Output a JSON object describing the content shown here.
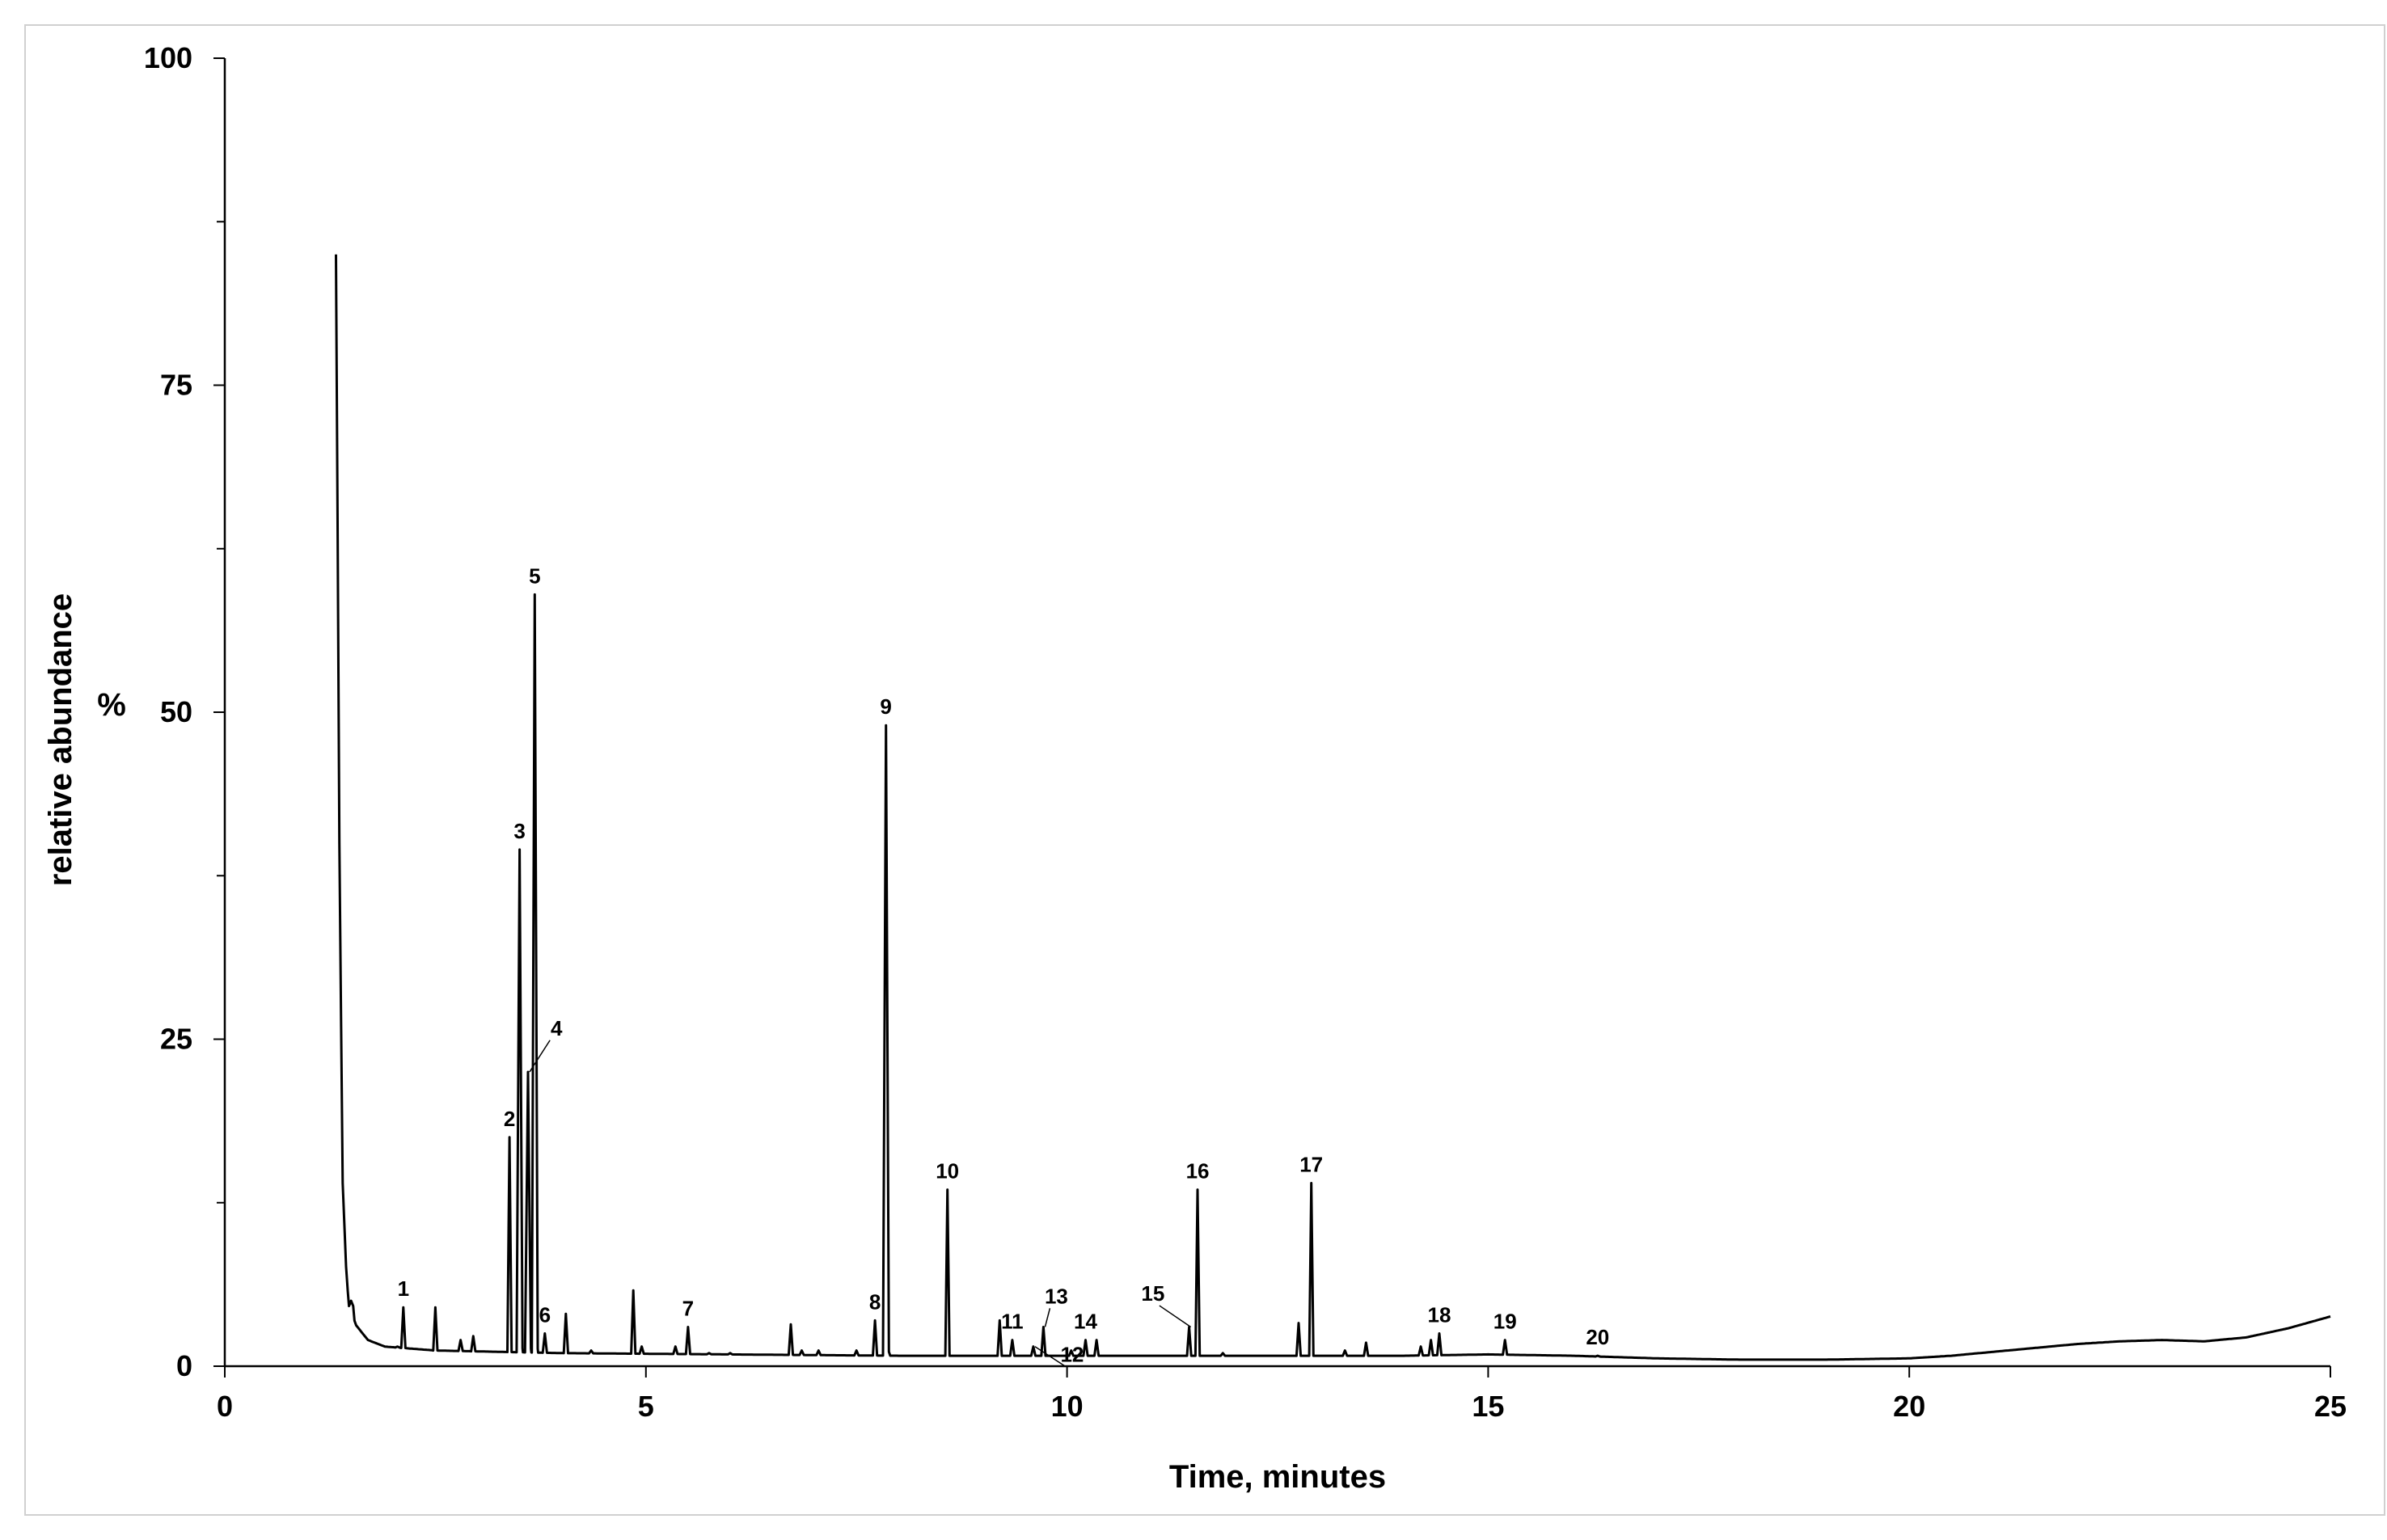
{
  "chart_data": {
    "type": "line",
    "title": "",
    "xlabel": "Time, minutes",
    "ylabel": "relative abundance",
    "yunit": "%",
    "xlim": [
      0,
      25
    ],
    "ylim": [
      0,
      100
    ],
    "x_ticks": [
      "0",
      "5",
      "10",
      "15",
      "20",
      "25"
    ],
    "y_ticks": [
      "0",
      "25",
      "50",
      "75",
      "100"
    ],
    "grid": false,
    "legend": "none",
    "line_color": "#000000",
    "baseline": [
      [
        1.32,
        85
      ],
      [
        1.33,
        75
      ],
      [
        1.36,
        40
      ],
      [
        1.4,
        14
      ],
      [
        1.45,
        6
      ],
      [
        1.55,
        3.2
      ],
      [
        1.7,
        2.0
      ],
      [
        1.9,
        1.5
      ],
      [
        2.5,
        1.2
      ],
      [
        4,
        1.0
      ],
      [
        6,
        0.9
      ],
      [
        8,
        0.8
      ],
      [
        10,
        0.8
      ],
      [
        12,
        0.8
      ],
      [
        14,
        0.8
      ],
      [
        15,
        0.9
      ],
      [
        16,
        0.8
      ],
      [
        17,
        0.6
      ],
      [
        18,
        0.5
      ],
      [
        19,
        0.5
      ],
      [
        20,
        0.6
      ],
      [
        20.5,
        0.8
      ],
      [
        21,
        1.1
      ],
      [
        21.5,
        1.4
      ],
      [
        22,
        1.7
      ],
      [
        22.5,
        1.9
      ],
      [
        23,
        2.0
      ],
      [
        23.5,
        1.9
      ],
      [
        24,
        2.2
      ],
      [
        24.5,
        2.9
      ],
      [
        25,
        3.8
      ]
    ],
    "peaks": [
      {
        "label": "1",
        "x": 2.12,
        "y": 4.5
      },
      {
        "label": "2",
        "x": 3.38,
        "y": 17.5
      },
      {
        "label": "3",
        "x": 3.5,
        "y": 39.5
      },
      {
        "label": "4",
        "x": 3.6,
        "y": 22.5
      },
      {
        "label": "5",
        "x": 3.68,
        "y": 59.0
      },
      {
        "label": "6",
        "x": 3.8,
        "y": 2.5
      },
      {
        "label": "7",
        "x": 5.5,
        "y": 3.0
      },
      {
        "label": "8",
        "x": 7.72,
        "y": 3.5
      },
      {
        "label": "9",
        "x": 7.85,
        "y": 49.0
      },
      {
        "label": "10",
        "x": 8.58,
        "y": 13.5
      },
      {
        "label": "11",
        "x": 9.35,
        "y": 2.0
      },
      {
        "label": "12",
        "x": 9.6,
        "y": 1.5
      },
      {
        "label": "13",
        "x": 9.72,
        "y": 3.0
      },
      {
        "label": "14",
        "x": 10.22,
        "y": 2.0
      },
      {
        "label": "15",
        "x": 11.45,
        "y": 3.0
      },
      {
        "label": "16",
        "x": 11.55,
        "y": 13.5
      },
      {
        "label": "17",
        "x": 12.9,
        "y": 14.0
      },
      {
        "label": "18",
        "x": 14.42,
        "y": 2.5
      },
      {
        "label": "19",
        "x": 15.2,
        "y": 2.0
      },
      {
        "label": "20",
        "x": 16.3,
        "y": 0.8
      }
    ],
    "minor_peaks": [
      {
        "x": 1.5,
        "y": 5.0
      },
      {
        "x": 2.05,
        "y": 1.5
      },
      {
        "x": 2.5,
        "y": 4.5
      },
      {
        "x": 2.8,
        "y": 2.0
      },
      {
        "x": 2.95,
        "y": 2.3
      },
      {
        "x": 4.05,
        "y": 4.0
      },
      {
        "x": 4.35,
        "y": 1.2
      },
      {
        "x": 4.85,
        "y": 5.8
      },
      {
        "x": 4.95,
        "y": 1.5
      },
      {
        "x": 5.35,
        "y": 1.5
      },
      {
        "x": 5.75,
        "y": 1.0
      },
      {
        "x": 6.0,
        "y": 1.0
      },
      {
        "x": 6.72,
        "y": 3.2
      },
      {
        "x": 6.85,
        "y": 1.2
      },
      {
        "x": 7.05,
        "y": 1.2
      },
      {
        "x": 7.5,
        "y": 1.2
      },
      {
        "x": 9.2,
        "y": 3.5
      },
      {
        "x": 10.05,
        "y": 1.2
      },
      {
        "x": 10.35,
        "y": 2.0
      },
      {
        "x": 11.85,
        "y": 1.0
      },
      {
        "x": 12.75,
        "y": 3.3
      },
      {
        "x": 13.3,
        "y": 1.2
      },
      {
        "x": 13.55,
        "y": 1.8
      },
      {
        "x": 14.2,
        "y": 1.5
      },
      {
        "x": 14.32,
        "y": 2.0
      }
    ]
  }
}
